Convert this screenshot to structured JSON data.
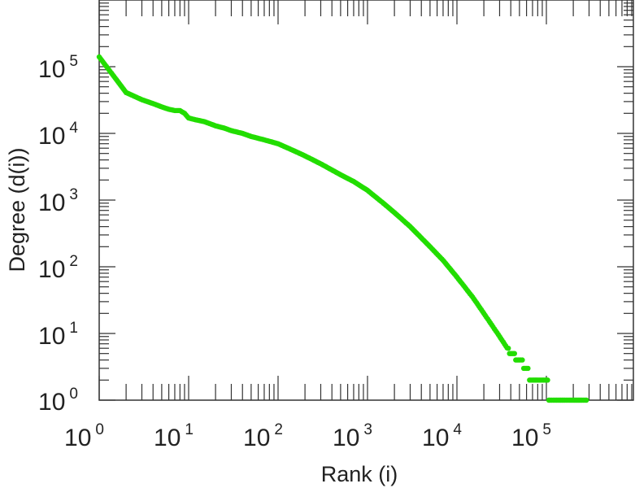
{
  "chart_data": {
    "type": "scatter",
    "title": "",
    "xlabel": "Rank (i)",
    "ylabel": "Degree (d(i))",
    "x_scale": "log",
    "y_scale": "log",
    "xlim": [
      1,
      1000000
    ],
    "ylim": [
      1,
      1000000
    ],
    "grid": false,
    "legend": "none",
    "marker_color": "#22dd00",
    "x_ticks": [
      {
        "base": "10",
        "exp": "0",
        "value": 1
      },
      {
        "base": "10",
        "exp": "1",
        "value": 10
      },
      {
        "base": "10",
        "exp": "2",
        "value": 100
      },
      {
        "base": "10",
        "exp": "3",
        "value": 1000
      },
      {
        "base": "10",
        "exp": "4",
        "value": 10000
      },
      {
        "base": "10",
        "exp": "5",
        "value": 100000
      }
    ],
    "y_ticks": [
      {
        "base": "10",
        "exp": "0",
        "value": 1
      },
      {
        "base": "10",
        "exp": "1",
        "value": 10
      },
      {
        "base": "10",
        "exp": "2",
        "value": 100
      },
      {
        "base": "10",
        "exp": "3",
        "value": 1000
      },
      {
        "base": "10",
        "exp": "4",
        "value": 10000
      },
      {
        "base": "10",
        "exp": "5",
        "value": 100000
      }
    ],
    "series": [
      {
        "x": [
          1,
          2,
          3,
          4,
          5,
          6,
          7,
          8,
          9,
          10,
          12,
          15,
          20,
          25,
          30,
          40,
          50,
          70,
          100,
          150,
          200,
          300,
          500,
          700,
          1000,
          1500,
          2000,
          3000,
          5000,
          7000,
          10000,
          15000,
          20000,
          30000,
          40000,
          50000,
          60000,
          70000,
          80000,
          90000,
          100000,
          110000,
          120000,
          140000,
          160000,
          180000,
          200000,
          220000,
          250000,
          280000
        ],
        "y": [
          140000,
          41000,
          32000,
          28000,
          25000,
          23000,
          22000,
          22000,
          20000,
          17000,
          16000,
          15000,
          13000,
          12000,
          11000,
          10000,
          9000,
          8000,
          7000,
          5500,
          4600,
          3500,
          2400,
          1900,
          1400,
          900,
          650,
          400,
          200,
          125,
          70,
          35,
          20,
          9,
          5,
          4,
          3,
          2,
          2,
          2,
          2,
          1,
          1,
          1,
          1,
          1,
          1,
          1,
          1,
          1
        ]
      }
    ]
  }
}
